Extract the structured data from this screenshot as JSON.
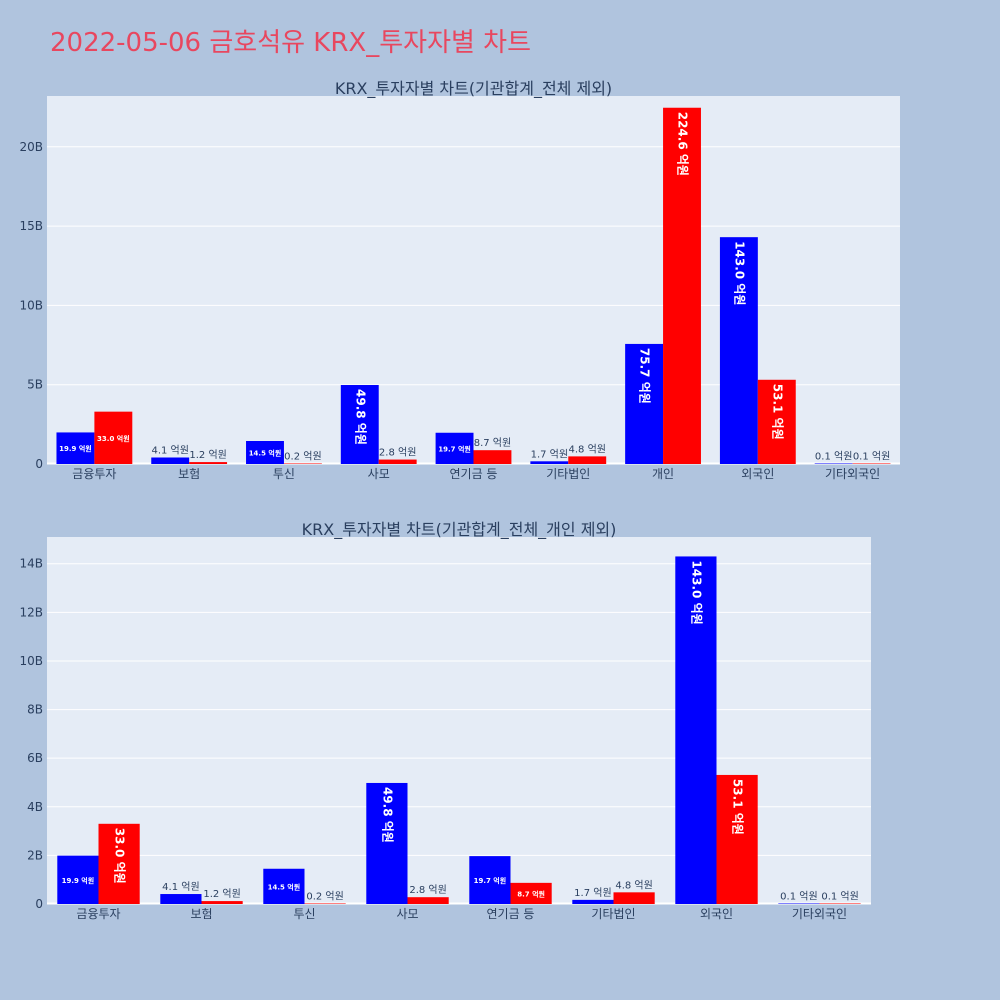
{
  "page": {
    "title": "2022-05-06 금호석유 KRX_투자자별 차트"
  },
  "colors": {
    "buy": "#0000ff",
    "sell": "#ff0000",
    "plot_bg": "#e5ecf6",
    "grid": "#ffffff",
    "page_bg": "#b0c4de"
  },
  "chart_data": [
    {
      "type": "bar",
      "title": "KRX_투자자별 차트(기관합계_전체 제외)",
      "categories": [
        "금융투자",
        "보험",
        "투신",
        "사모",
        "연기금 등",
        "기타법인",
        "개인",
        "외국인",
        "기타외국인"
      ],
      "series": [
        {
          "values": [
            1.99,
            0.41,
            1.45,
            4.98,
            1.97,
            0.17,
            7.57,
            14.3,
            0.01
          ],
          "labels": [
            "19.9 억원",
            "4.1 억원",
            "14.5 억원",
            "49.8 억원",
            "19.7 억원",
            "1.7 억원",
            "75.7 억원",
            "143.0 억원",
            "0.1 억원"
          ]
        },
        {
          "values": [
            3.3,
            0.12,
            0.02,
            0.28,
            0.87,
            0.48,
            22.46,
            5.31,
            0.01
          ],
          "labels": [
            "33.0 억원",
            "1.2 억원",
            "0.2 억원",
            "2.8 억원",
            "8.7 억원",
            "4.8 억원",
            "224.6 억원",
            "53.1 억원",
            "0.1 억원"
          ]
        }
      ],
      "y_unit": "B",
      "ylim": [
        0,
        23.2
      ],
      "yticks": [
        {
          "value": 0,
          "label": "0"
        },
        {
          "value": 5,
          "label": "5B"
        },
        {
          "value": 10,
          "label": "10B"
        },
        {
          "value": 15,
          "label": "15B"
        },
        {
          "value": 20,
          "label": "20B"
        }
      ],
      "grid": true,
      "legend": "none"
    },
    {
      "type": "bar",
      "title": "KRX_투자자별 차트(기관합계_전체_개인 제외)",
      "categories": [
        "금융투자",
        "보험",
        "투신",
        "사모",
        "연기금 등",
        "기타법인",
        "외국인",
        "기타외국인"
      ],
      "series": [
        {
          "values": [
            1.99,
            0.41,
            1.45,
            4.98,
            1.97,
            0.17,
            14.3,
            0.01
          ],
          "labels": [
            "19.9 억원",
            "4.1 억원",
            "14.5 억원",
            "49.8 억원",
            "19.7 억원",
            "1.7 억원",
            "143.0 억원",
            "0.1 억원"
          ]
        },
        {
          "values": [
            3.3,
            0.12,
            0.02,
            0.28,
            0.87,
            0.48,
            5.31,
            0.01
          ],
          "labels": [
            "33.0 억원",
            "1.2 억원",
            "0.2 억원",
            "2.8 억원",
            "8.7 억원",
            "4.8 억원",
            "53.1 억원",
            "0.1 억원"
          ]
        }
      ],
      "y_unit": "B",
      "ylim": [
        0,
        15.1
      ],
      "yticks": [
        {
          "value": 0,
          "label": "0"
        },
        {
          "value": 2,
          "label": "2B"
        },
        {
          "value": 4,
          "label": "4B"
        },
        {
          "value": 6,
          "label": "6B"
        },
        {
          "value": 8,
          "label": "8B"
        },
        {
          "value": 10,
          "label": "10B"
        },
        {
          "value": 12,
          "label": "12B"
        },
        {
          "value": 14,
          "label": "14B"
        }
      ],
      "grid": true,
      "legend": "none"
    }
  ]
}
